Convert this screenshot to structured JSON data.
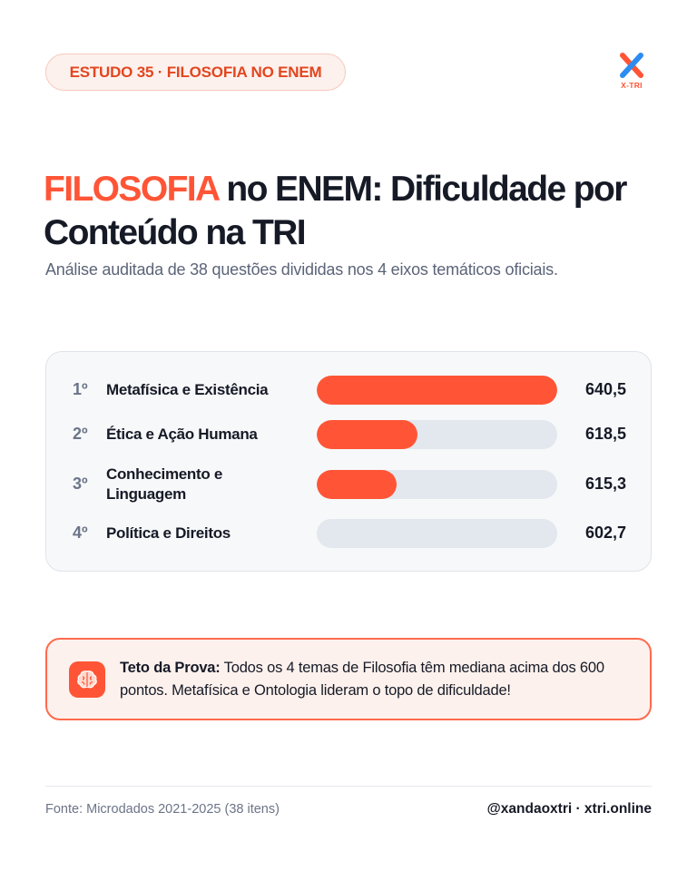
{
  "badge": "ESTUDO 35 · FILOSOFIA NO ENEM",
  "logo_text": "X-TRI",
  "title": {
    "accent": "FILOSOFIA",
    "rest": " no ENEM: Dificuldade por Conteúdo na TRI"
  },
  "subtitle": "Análise auditada de 38 questões divididas nos 4 eixos temáticos oficiais.",
  "colors": {
    "accent": "#ff5536",
    "track": "#e3e7ee",
    "text": "#161a26"
  },
  "chart_data": {
    "type": "bar",
    "orientation": "horizontal",
    "scale_min": 602.7,
    "scale_max": 640.5,
    "items": [
      {
        "rank": "1º",
        "category": "Metafísica e Existência",
        "value": 640.5,
        "value_label": "640,5"
      },
      {
        "rank": "2º",
        "category": "Ética e Ação Humana",
        "value": 618.5,
        "value_label": "618,5"
      },
      {
        "rank": "3º",
        "category": "Conhecimento e Linguagem",
        "value": 615.3,
        "value_label": "615,3"
      },
      {
        "rank": "4º",
        "category": "Política e Direitos",
        "value": 602.7,
        "value_label": "602,7"
      }
    ]
  },
  "callout": {
    "icon": "brain-icon",
    "bold": "Teto da Prova:",
    "text": " Todos os 4 temas de Filosofia têm mediana acima dos 600 pontos. Metafísica e Ontologia lideram o topo de dificuldade!"
  },
  "footer": {
    "source": "Fonte: Microdados 2021-2025 (38 itens)",
    "handle": "@xandaoxtri · xtri.online"
  }
}
